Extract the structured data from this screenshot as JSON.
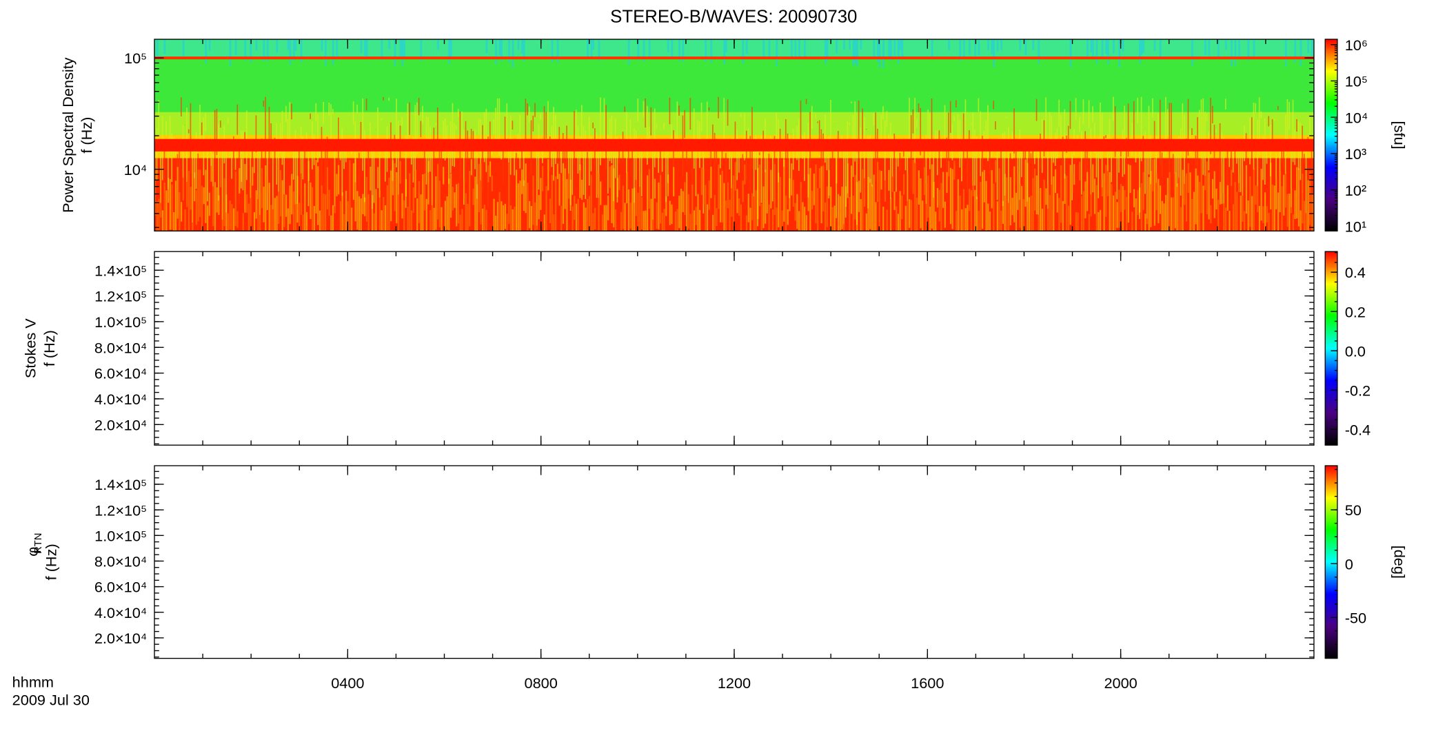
{
  "title": "STEREO-B/WAVES: 20090730",
  "x_axis_label": "hhmm",
  "date_label": "2009 Jul 30",
  "chart_data": [
    {
      "type": "heatmap",
      "ylabel": "Power Spectral Density",
      "ylabel2": "f (Hz)",
      "ylog": true,
      "ylim": [
        2790,
        147000
      ],
      "yticks": [
        {
          "value": 10000,
          "label": "10⁴"
        },
        {
          "value": 100000,
          "label": "10⁵"
        }
      ],
      "xlim": [
        0,
        24
      ],
      "xticks": [
        4,
        8,
        12,
        16,
        20
      ],
      "colorbar": {
        "label": "[sfu]",
        "log": true,
        "lim": [
          7.4,
          1400000
        ],
        "ticks": [
          {
            "value": 10,
            "label": "10¹"
          },
          {
            "value": 100,
            "label": "10²"
          },
          {
            "value": 1000,
            "label": "10³"
          },
          {
            "value": 10000,
            "label": "10⁴"
          },
          {
            "value": 100000,
            "label": "10⁵"
          },
          {
            "value": 1000000,
            "label": "10⁶"
          }
        ]
      }
    },
    {
      "type": "heatmap",
      "ylabel": "Stokes V",
      "ylabel2": "f (Hz)",
      "ylog": false,
      "ylim": [
        4000,
        154500
      ],
      "yticks": [
        {
          "value": 20000,
          "label": "2.0×10⁴"
        },
        {
          "value": 40000,
          "label": "4.0×10⁴"
        },
        {
          "value": 60000,
          "label": "6.0×10⁴"
        },
        {
          "value": 80000,
          "label": "8.0×10⁴"
        },
        {
          "value": 100000,
          "label": "1.0×10⁵"
        },
        {
          "value": 120000,
          "label": "1.2×10⁵"
        },
        {
          "value": 140000,
          "label": "1.4×10⁵"
        }
      ],
      "xlim": [
        0,
        24
      ],
      "xticks": [
        4,
        8,
        12,
        16,
        20
      ],
      "colorbar": {
        "log": false,
        "lim": [
          -0.48,
          0.505
        ],
        "ticks": [
          -0.4,
          -0.2,
          {
            "value": 0,
            "label": "0.0"
          },
          0.2,
          0.4
        ]
      }
    },
    {
      "type": "heatmap",
      "ylabel": "φ",
      "ylabel_sub": "RTN",
      "ylabel2": "f (Hz)",
      "ylog": false,
      "ylim": [
        4000,
        154500
      ],
      "yticks": [
        {
          "value": 20000,
          "label": "2.0×10⁴"
        },
        {
          "value": 40000,
          "label": "4.0×10⁴"
        },
        {
          "value": 60000,
          "label": "6.0×10⁴"
        },
        {
          "value": 80000,
          "label": "8.0×10⁴"
        },
        {
          "value": 100000,
          "label": "1.0×10⁵"
        },
        {
          "value": 120000,
          "label": "1.2×10⁵"
        },
        {
          "value": 140000,
          "label": "1.4×10⁵"
        }
      ],
      "xlim": [
        0,
        24
      ],
      "xticks": [
        {
          "value": 4,
          "label": "0400"
        },
        {
          "value": 8,
          "label": "0800"
        },
        {
          "value": 12,
          "label": "1200"
        },
        {
          "value": 16,
          "label": "1600"
        },
        {
          "value": 20,
          "label": "2000"
        }
      ],
      "colorbar": {
        "label": "[deg]",
        "log": false,
        "lim": [
          -88,
          91
        ],
        "ticks": [
          -50,
          0,
          50
        ]
      }
    }
  ],
  "colormap": [
    "#000000",
    "#4b0082",
    "#0000ff",
    "#00ffff",
    "#00ff00",
    "#ffff00",
    "#ff0000"
  ]
}
